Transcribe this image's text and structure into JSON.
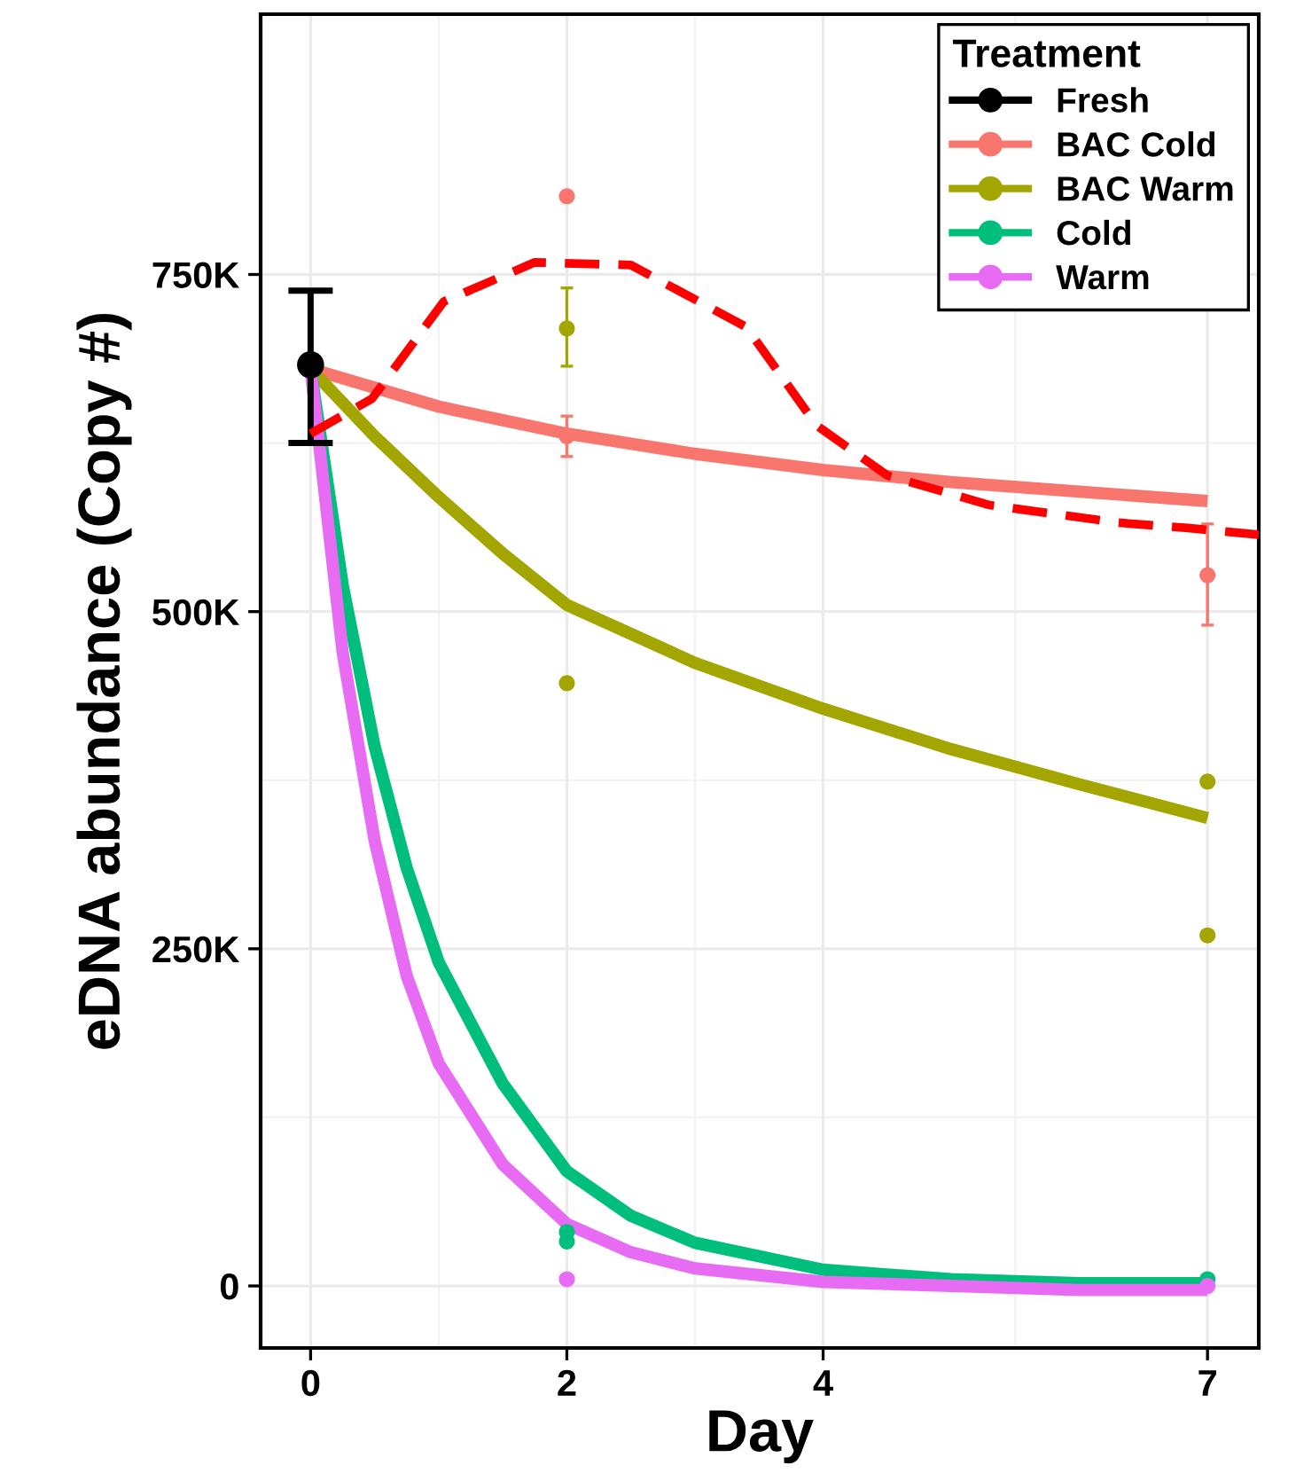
{
  "chart_data": {
    "type": "line",
    "xlabel": "Day",
    "ylabel": "eDNA abundance (Copy #)",
    "legend_title": "Treatment",
    "xlim": [
      -0.39,
      7.4
    ],
    "ylim": [
      -46000,
      943000
    ],
    "xticks": [
      0,
      2,
      4,
      7
    ],
    "yticks": [
      {
        "value": 0,
        "label": "0"
      },
      {
        "value": 250000,
        "label": "250K"
      },
      {
        "value": 500000,
        "label": "500K"
      },
      {
        "value": 750000,
        "label": "750K"
      }
    ],
    "grid": true,
    "legend": "top right",
    "series": [
      {
        "name": "Fresh",
        "color": "#000000",
        "type": "scatter",
        "marker": "circle",
        "x": [
          0
        ],
        "values": [
          683000
        ],
        "errors": [
          [
            625000,
            738000
          ]
        ]
      },
      {
        "name": "BAC Cold",
        "color": "#f8766d",
        "type": "scatter",
        "marker": "circle",
        "x": [
          2,
          2,
          7
        ],
        "values": [
          808000,
          630000,
          527000
        ],
        "errors": [
          null,
          [
            615000,
            645000
          ],
          [
            490000,
            565000
          ]
        ]
      },
      {
        "name": "BAC Warm",
        "color": "#a3a500",
        "type": "scatter",
        "marker": "circle",
        "x": [
          2,
          2,
          7,
          7
        ],
        "values": [
          710000,
          447000,
          374000,
          260000
        ],
        "errors": [
          [
            682000,
            740000
          ],
          null,
          null,
          null
        ]
      },
      {
        "name": "Cold",
        "color": "#00bf7d",
        "type": "scatter",
        "marker": "circle",
        "x": [
          2,
          2,
          7
        ],
        "values": [
          40000,
          33000,
          5000
        ]
      },
      {
        "name": "Warm",
        "color": "#e76bf3",
        "type": "scatter",
        "marker": "circle",
        "x": [
          2,
          7
        ],
        "values": [
          5000,
          0
        ]
      },
      {
        "color": "#f8766d",
        "x": [
          0,
          1,
          2,
          3,
          4,
          5,
          6,
          7
        ],
        "values": [
          680000,
          652000,
          632000,
          617000,
          605000,
          596000,
          589000,
          582000
        ]
      },
      {
        "color": "#a3a500",
        "x": [
          0,
          0.5,
          1,
          1.5,
          2,
          3,
          4,
          5,
          6,
          7
        ],
        "values": [
          680000,
          630000,
          585000,
          543000,
          505000,
          462000,
          428000,
          398000,
          372000,
          347000
        ]
      },
      {
        "color": "#00bf7d",
        "x": [
          0,
          0.25,
          0.5,
          0.75,
          1,
          1.5,
          2,
          2.5,
          3,
          4,
          5,
          6,
          7
        ],
        "values": [
          680000,
          520000,
          400000,
          310000,
          240000,
          150000,
          85000,
          52000,
          32000,
          12000,
          5000,
          2000,
          2000
        ]
      },
      {
        "color": "#e76bf3",
        "x": [
          0,
          0.25,
          0.5,
          0.75,
          1,
          1.5,
          2,
          2.5,
          3,
          4,
          5,
          6,
          7
        ],
        "values": [
          680000,
          470000,
          330000,
          230000,
          165000,
          90000,
          46000,
          25000,
          13000,
          3000,
          0,
          -3000,
          -3000
        ]
      },
      {
        "color": "#ff0000",
        "line_style": "dashed",
        "x": [
          0,
          0.48,
          1.04,
          1.75,
          2.5,
          3.4,
          3.95,
          4.5,
          5.3,
          6.3,
          6.85,
          7.4
        ],
        "values": [
          632000,
          658000,
          730000,
          759000,
          757000,
          711000,
          638000,
          601000,
          579000,
          566000,
          562000,
          557000
        ]
      }
    ]
  }
}
